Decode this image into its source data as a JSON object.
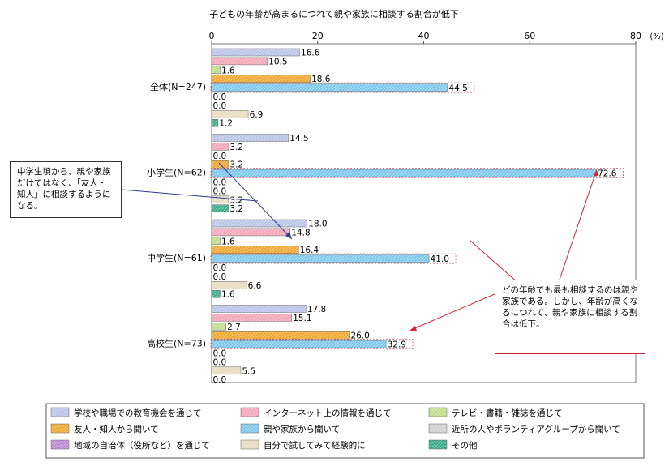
{
  "chart_data": {
    "type": "bar",
    "orientation": "horizontal",
    "title": "子どもの年齢が高まるにつれて親や家族に相談する割合が低下",
    "unit": "(%)",
    "xlim": [
      0,
      80
    ],
    "xticks": [
      0,
      20,
      40,
      60,
      80
    ],
    "grid": false,
    "legend_position": "bottom",
    "categories": [
      "全体(N=247)",
      "小学生(N=62)",
      "中学生(N=61)",
      "高校生(N=73)"
    ],
    "series": [
      {
        "name": "学校や職場での教育機会を通じて",
        "color": "#b9c4e6",
        "values": [
          16.6,
          14.5,
          18.0,
          17.8
        ]
      },
      {
        "name": "インターネット上の情報を通じて",
        "color": "#f4a6b8",
        "values": [
          10.5,
          3.2,
          14.8,
          15.1
        ]
      },
      {
        "name": "テレビ・書籍・雑誌を通じて",
        "color": "#bfdc8c",
        "values": [
          1.6,
          0.0,
          1.6,
          2.7
        ]
      },
      {
        "name": "友人・知人から聞いて",
        "color": "#f0a830",
        "values": [
          18.6,
          3.2,
          16.4,
          26.0
        ]
      },
      {
        "name": "親や家族から聞いて",
        "color": "#7ec8ee",
        "values": [
          44.5,
          72.6,
          41.0,
          32.9
        ]
      },
      {
        "name": "近所の人やボランティアグループから聞いて",
        "color": "#d0d0d0",
        "values": [
          0.0,
          0.0,
          0.0,
          0.0
        ]
      },
      {
        "name": "地域の自治体（役所など）を通じて",
        "color": "#b88ad0",
        "values": [
          0.0,
          0.0,
          0.0,
          0.0
        ]
      },
      {
        "name": "自分で試してみて経験的に",
        "color": "#e8dcc0",
        "values": [
          6.9,
          3.2,
          6.6,
          5.5
        ]
      },
      {
        "name": "その他",
        "color": "#3aaa88",
        "values": [
          1.2,
          3.2,
          1.6,
          0.0
        ]
      }
    ],
    "annotations": [
      "中学生頃から、親や家族だけではなく、「友人・知人」に相談するようになる。",
      "どの年齢でも最も相談するのは親や家族である。しかし、年齢が高くなるにつれて、親や家族に相談する割合は低下。"
    ]
  }
}
